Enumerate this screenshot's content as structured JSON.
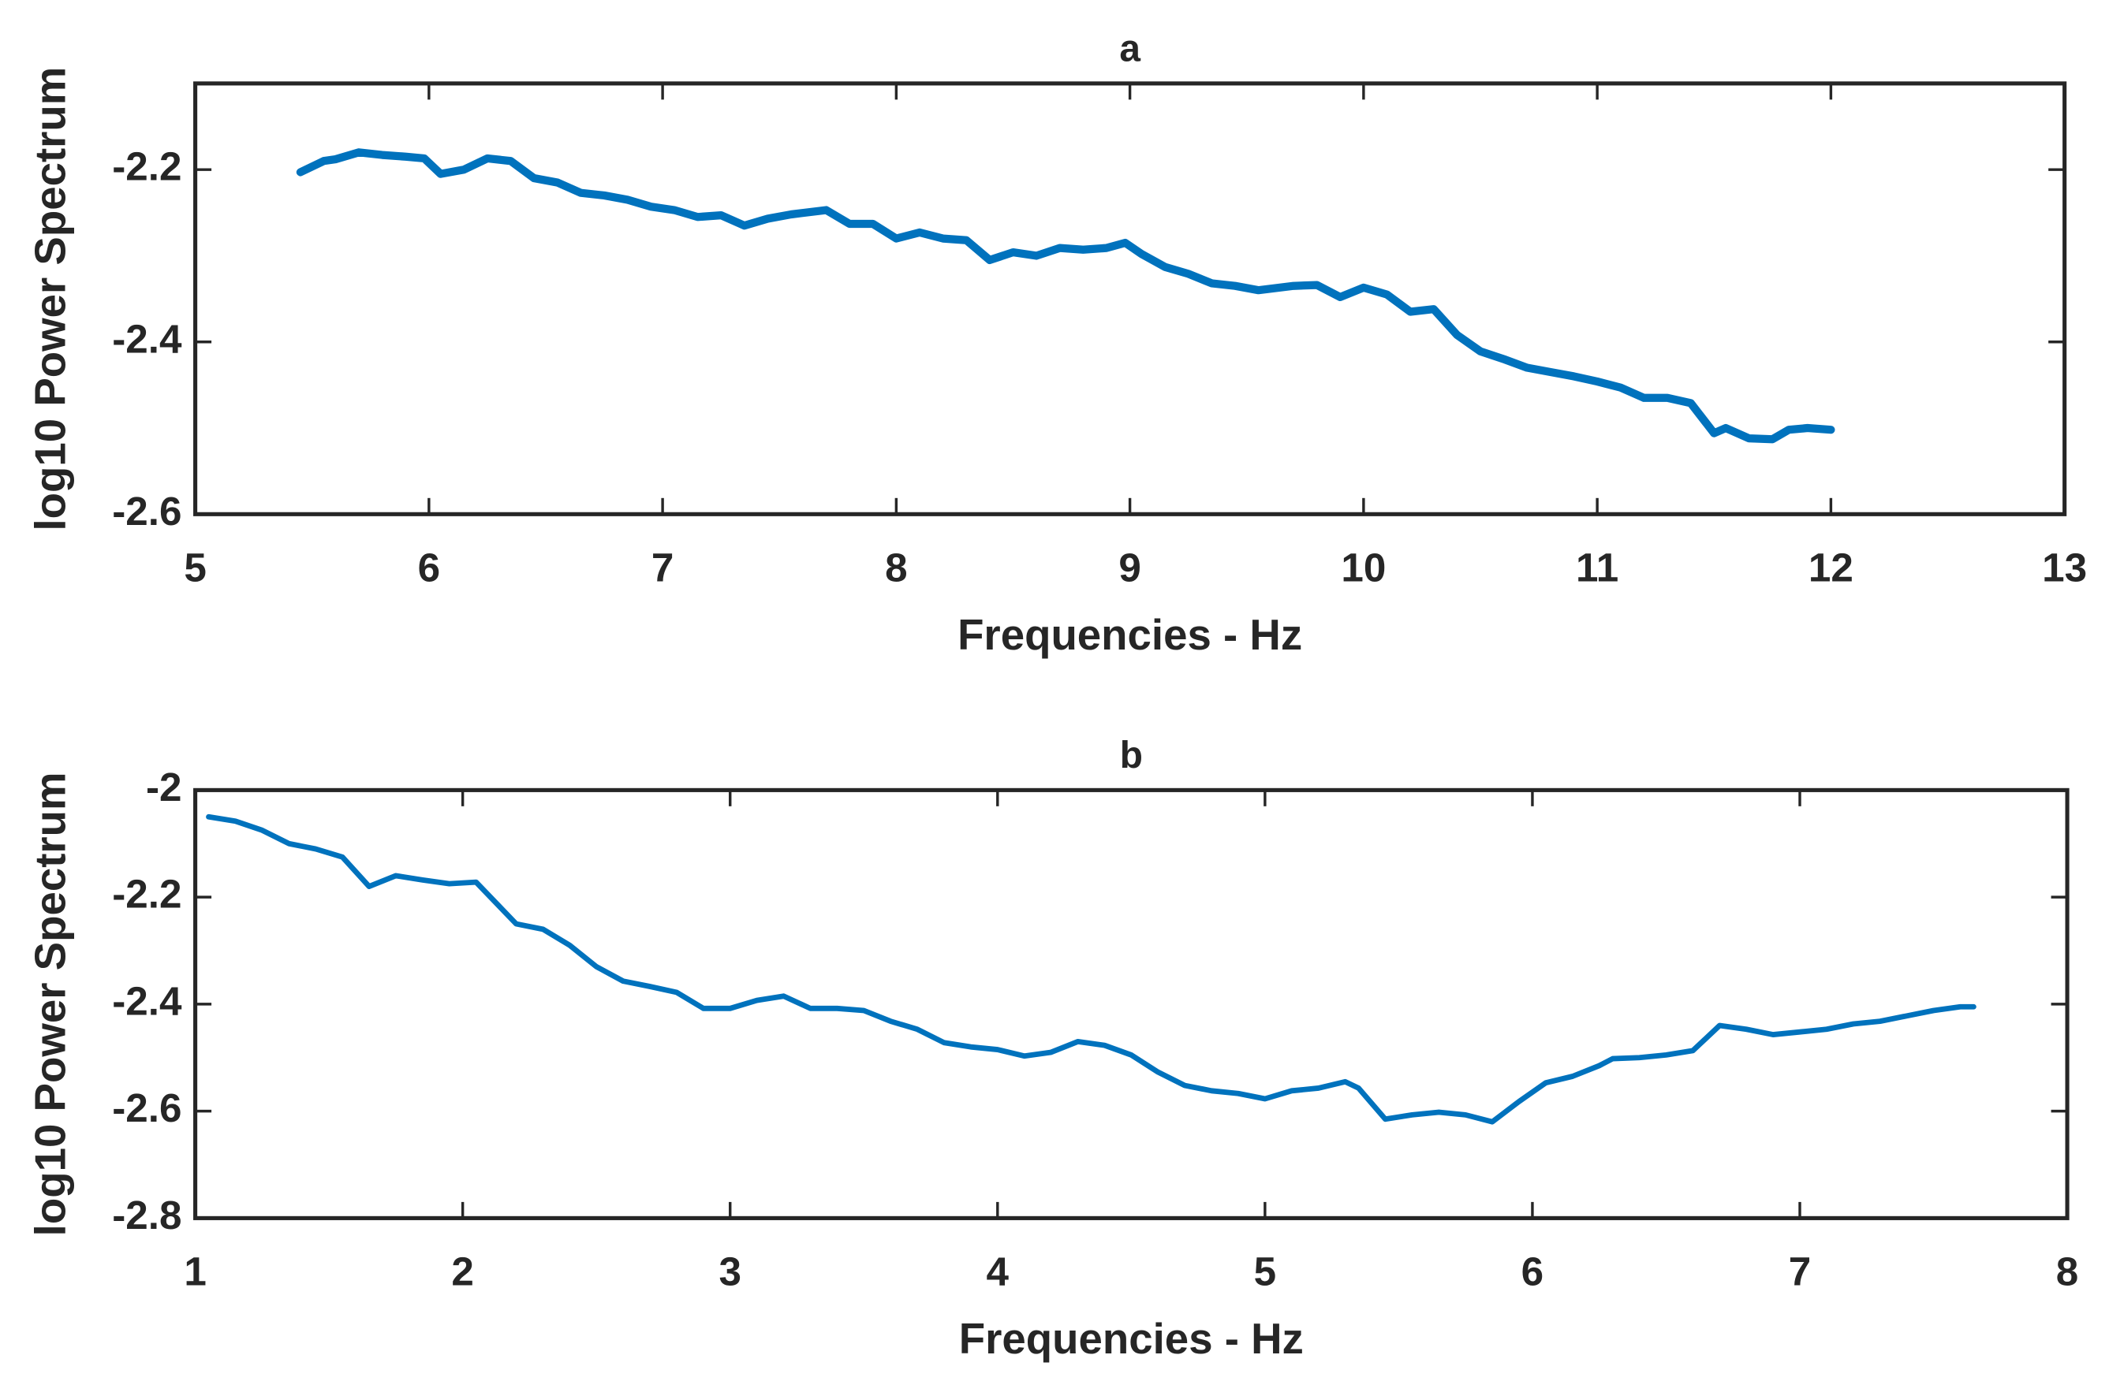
{
  "chart_data": [
    {
      "type": "line",
      "title": "a",
      "x_label": "Frequencies - Hz",
      "y_label": "log10 Power Spectrum",
      "xlim": [
        5,
        13
      ],
      "xticks": [
        5,
        6,
        7,
        8,
        9,
        10,
        11,
        12,
        13
      ],
      "ylim": [
        -2.6,
        -2.1
      ],
      "yticks": [
        -2.6,
        -2.4,
        -2.2
      ],
      "x": [
        5.45,
        5.55,
        5.6,
        5.7,
        5.8,
        5.9,
        5.98,
        6.05,
        6.15,
        6.25,
        6.35,
        6.45,
        6.55,
        6.65,
        6.75,
        6.85,
        6.95,
        7.05,
        7.15,
        7.25,
        7.35,
        7.45,
        7.55,
        7.7,
        7.8,
        7.9,
        8.0,
        8.1,
        8.2,
        8.3,
        8.4,
        8.5,
        8.6,
        8.7,
        8.8,
        8.9,
        8.98,
        9.05,
        9.15,
        9.25,
        9.35,
        9.45,
        9.55,
        9.7,
        9.8,
        9.9,
        10.0,
        10.1,
        10.2,
        10.3,
        10.4,
        10.5,
        10.6,
        10.7,
        10.8,
        10.9,
        11.0,
        11.1,
        11.2,
        11.3,
        11.4,
        11.5,
        11.55,
        11.65,
        11.75,
        11.82,
        11.9,
        12.0
      ],
      "series": [
        {
          "color": "#0072bd",
          "values": [
            -2.203,
            -2.19,
            -2.188,
            -2.18,
            -2.183,
            -2.185,
            -2.187,
            -2.205,
            -2.2,
            -2.187,
            -2.19,
            -2.21,
            -2.215,
            -2.227,
            -2.23,
            -2.235,
            -2.243,
            -2.247,
            -2.255,
            -2.253,
            -2.265,
            -2.257,
            -2.252,
            -2.247,
            -2.263,
            -2.263,
            -2.28,
            -2.273,
            -2.28,
            -2.282,
            -2.305,
            -2.296,
            -2.3,
            -2.291,
            -2.293,
            -2.291,
            -2.285,
            -2.298,
            -2.313,
            -2.321,
            -2.332,
            -2.335,
            -2.34,
            -2.335,
            -2.334,
            -2.348,
            -2.337,
            -2.345,
            -2.365,
            -2.362,
            -2.392,
            -2.411,
            -2.42,
            -2.43,
            -2.435,
            -2.44,
            -2.446,
            -2.453,
            -2.465,
            -2.465,
            -2.471,
            -2.506,
            -2.5,
            -2.512,
            -2.513,
            -2.502,
            -2.5,
            -2.502
          ]
        }
      ]
    },
    {
      "type": "line",
      "title": "b",
      "x_label": "Frequencies - Hz",
      "y_label": "log10 Power Spectrum",
      "xlim": [
        1,
        8
      ],
      "xticks": [
        1,
        2,
        3,
        4,
        5,
        6,
        7,
        8
      ],
      "ylim": [
        -2.8,
        -2
      ],
      "yticks": [
        -2.8,
        -2.6,
        -2.4,
        -2.2,
        -2
      ],
      "x": [
        1.05,
        1.15,
        1.25,
        1.35,
        1.45,
        1.55,
        1.65,
        1.75,
        1.85,
        1.95,
        2.05,
        2.2,
        2.3,
        2.4,
        2.5,
        2.6,
        2.7,
        2.8,
        2.9,
        3.0,
        3.1,
        3.2,
        3.3,
        3.4,
        3.5,
        3.6,
        3.7,
        3.8,
        3.9,
        4.0,
        4.1,
        4.2,
        4.3,
        4.4,
        4.5,
        4.6,
        4.7,
        4.8,
        4.9,
        5.0,
        5.1,
        5.2,
        5.3,
        5.35,
        5.45,
        5.55,
        5.65,
        5.75,
        5.85,
        5.95,
        6.05,
        6.15,
        6.25,
        6.3,
        6.4,
        6.5,
        6.6,
        6.7,
        6.8,
        6.9,
        7.0,
        7.1,
        7.2,
        7.3,
        7.4,
        7.5,
        7.6,
        7.65
      ],
      "series": [
        {
          "color": "#0072bd",
          "values": [
            -2.05,
            -2.058,
            -2.075,
            -2.1,
            -2.11,
            -2.125,
            -2.18,
            -2.16,
            -2.168,
            -2.175,
            -2.172,
            -2.25,
            -2.26,
            -2.29,
            -2.33,
            -2.357,
            -2.367,
            -2.378,
            -2.408,
            -2.408,
            -2.393,
            -2.385,
            -2.408,
            -2.408,
            -2.412,
            -2.432,
            -2.447,
            -2.472,
            -2.48,
            -2.485,
            -2.497,
            -2.49,
            -2.47,
            -2.477,
            -2.495,
            -2.527,
            -2.552,
            -2.562,
            -2.567,
            -2.577,
            -2.562,
            -2.557,
            -2.545,
            -2.557,
            -2.615,
            -2.607,
            -2.602,
            -2.607,
            -2.62,
            -2.582,
            -2.547,
            -2.535,
            -2.515,
            -2.502,
            -2.5,
            -2.495,
            -2.487,
            -2.44,
            -2.447,
            -2.457,
            -2.452,
            -2.447,
            -2.437,
            -2.432,
            -2.422,
            -2.412,
            -2.405,
            -2.405
          ]
        }
      ]
    }
  ]
}
